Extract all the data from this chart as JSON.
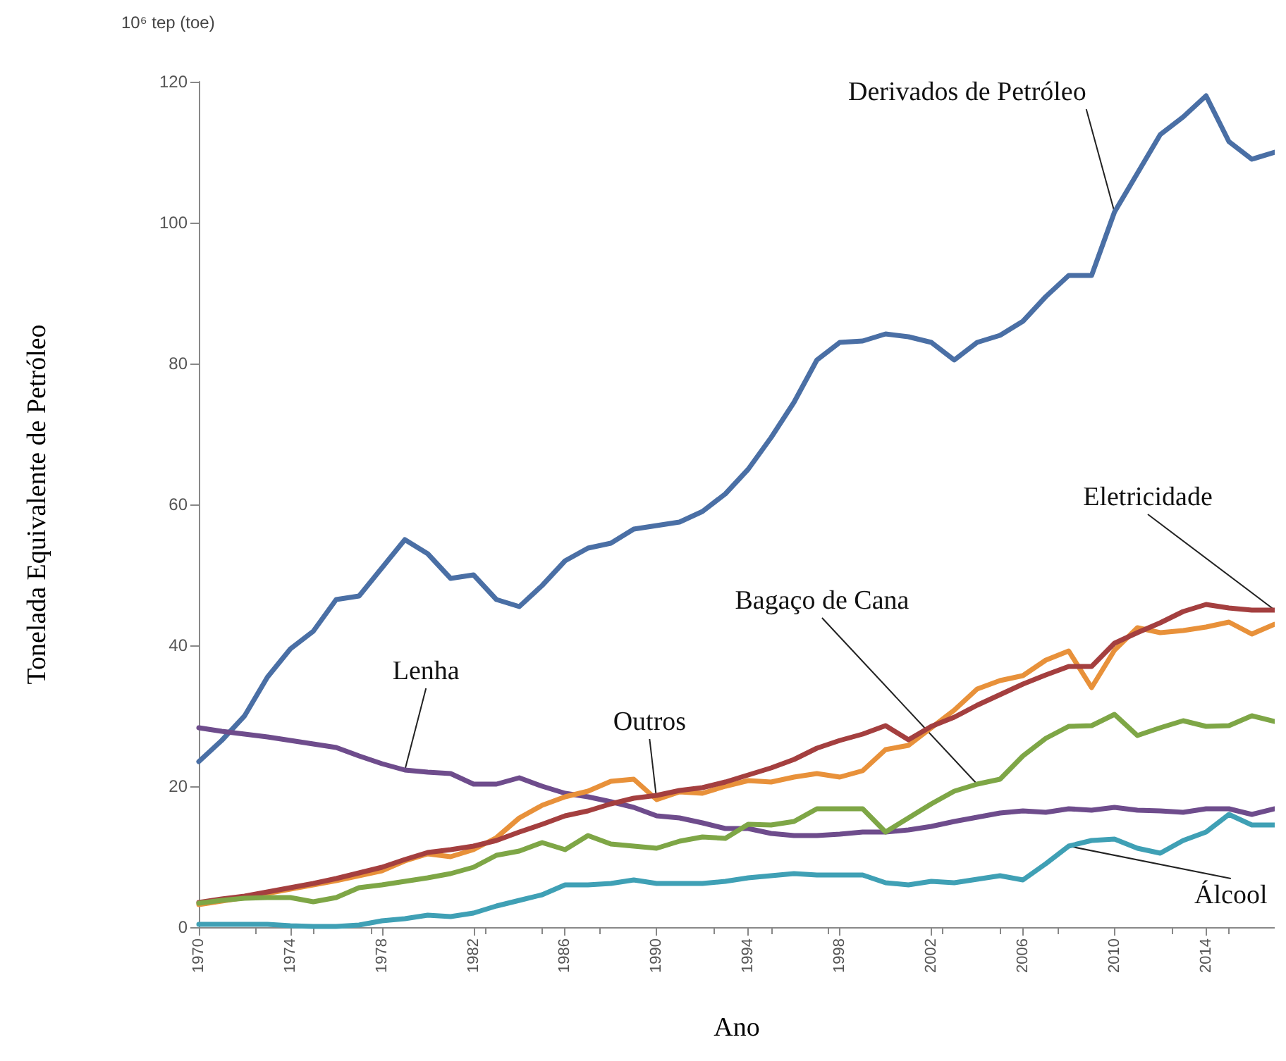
{
  "chart_data": {
    "type": "line",
    "xlabel": "Ano",
    "ylabel": "Tonelada Equivalente de Petróleo",
    "annotations": [
      "10⁶ tep (toe)"
    ],
    "x": [
      1970,
      1971,
      1972,
      1973,
      1974,
      1975,
      1976,
      1977,
      1978,
      1979,
      1980,
      1981,
      1982,
      1983,
      1984,
      1985,
      1986,
      1987,
      1988,
      1989,
      1990,
      1991,
      1992,
      1993,
      1994,
      1995,
      1996,
      1997,
      1998,
      1999,
      2000,
      2001,
      2002,
      2003,
      2004,
      2005,
      2006,
      2007,
      2008,
      2009,
      2010,
      2011,
      2012,
      2013,
      2014,
      2015,
      2016,
      2017
    ],
    "xlim": [
      1970,
      2017
    ],
    "xticks": [
      1970,
      1974,
      1978,
      1982,
      1986,
      1990,
      1994,
      1998,
      2002,
      2006,
      2010,
      2014
    ],
    "ylim": [
      0,
      120
    ],
    "yticks": [
      0,
      20,
      40,
      60,
      80,
      100,
      120
    ],
    "grid": false,
    "legend": false,
    "marker": "none",
    "line_style": "solid",
    "series": [
      {
        "name": "Derivados de Petróleo",
        "color": "#4a6fa5",
        "values": [
          23.5,
          26.5,
          30,
          35.5,
          39.5,
          42,
          46.5,
          47,
          51,
          55,
          53,
          49.5,
          50,
          46.5,
          45.5,
          48.5,
          52,
          53.8,
          54.5,
          56.5,
          57,
          57.5,
          59,
          61.5,
          65,
          69.5,
          74.5,
          80.5,
          83,
          83.2,
          84.2,
          83.8,
          83,
          80.5,
          83,
          84,
          86,
          89.5,
          92.5,
          92.5,
          101.5,
          107,
          112.5,
          115,
          118,
          111.5,
          109,
          110
        ]
      },
      {
        "name": "Lenha",
        "color": "#6e4c8c",
        "values": [
          28.3,
          27.8,
          27.4,
          27,
          26.5,
          26,
          25.5,
          24.3,
          23.2,
          22.3,
          22,
          21.8,
          20.3,
          20.3,
          21.2,
          20,
          19,
          18.5,
          17.8,
          17,
          15.8,
          15.5,
          14.8,
          14,
          14,
          13.3,
          13,
          13,
          13.2,
          13.5,
          13.5,
          13.8,
          14.3,
          15,
          15.6,
          16.2,
          16.5,
          16.3,
          16.8,
          16.6,
          17,
          16.6,
          16.5,
          16.3,
          16.8,
          16.8,
          16,
          16.8
        ]
      },
      {
        "name": "Outros",
        "color": "#e8913a",
        "values": [
          3.2,
          3.7,
          4.2,
          4.8,
          5.4,
          6,
          6.6,
          7.3,
          8,
          9.4,
          10.4,
          10,
          11,
          12.7,
          15.5,
          17.3,
          18.5,
          19.3,
          20.7,
          21,
          18.1,
          19.2,
          19,
          20,
          20.8,
          20.6,
          21.3,
          21.8,
          21.3,
          22.2,
          25.2,
          25.8,
          28.3,
          30.8,
          33.8,
          35,
          35.7,
          37.9,
          39.2,
          34,
          39.3,
          42.5,
          41.8,
          42.1,
          42.6,
          43.3,
          41.6,
          43
        ]
      },
      {
        "name": "Eletricidade",
        "color": "#a43f3f",
        "values": [
          3.5,
          4,
          4.4,
          5,
          5.6,
          6.2,
          6.9,
          7.7,
          8.5,
          9.6,
          10.6,
          11,
          11.5,
          12.3,
          13.5,
          14.6,
          15.8,
          16.5,
          17.5,
          18.3,
          18.7,
          19.4,
          19.8,
          20.6,
          21.6,
          22.6,
          23.8,
          25.4,
          26.5,
          27.4,
          28.6,
          26.6,
          28.5,
          29.8,
          31.5,
          33,
          34.5,
          35.8,
          37,
          37,
          40.3,
          41.8,
          43.2,
          44.8,
          45.8,
          45.3,
          45,
          45
        ]
      },
      {
        "name": "Bagaço de Cana",
        "color": "#7ea646",
        "values": [
          3.4,
          3.8,
          4.1,
          4.2,
          4.2,
          3.6,
          4.2,
          5.6,
          6,
          6.5,
          7,
          7.6,
          8.5,
          10.2,
          10.8,
          12,
          11,
          13,
          11.8,
          11.5,
          11.2,
          12.2,
          12.8,
          12.6,
          14.6,
          14.5,
          15,
          16.8,
          16.8,
          16.8,
          13.5,
          15.5,
          17.5,
          19.3,
          20.3,
          21,
          24.3,
          26.8,
          28.5,
          28.6,
          30.2,
          27.2,
          28.3,
          29.3,
          28.5,
          28.6,
          30,
          29.2
        ]
      },
      {
        "name": "Álcool",
        "color": "#3fa0b5",
        "values": [
          0.4,
          0.4,
          0.4,
          0.4,
          0.2,
          0.1,
          0.1,
          0.3,
          0.9,
          1.2,
          1.7,
          1.5,
          2,
          3,
          3.8,
          4.6,
          6,
          6,
          6.2,
          6.7,
          6.2,
          6.2,
          6.2,
          6.5,
          7,
          7.3,
          7.6,
          7.4,
          7.4,
          7.4,
          6.3,
          6,
          6.5,
          6.3,
          6.8,
          7.3,
          6.7,
          9,
          11.5,
          12.3,
          12.5,
          11.2,
          10.5,
          12.3,
          13.5,
          16,
          14.5,
          14.5
        ]
      }
    ]
  }
}
